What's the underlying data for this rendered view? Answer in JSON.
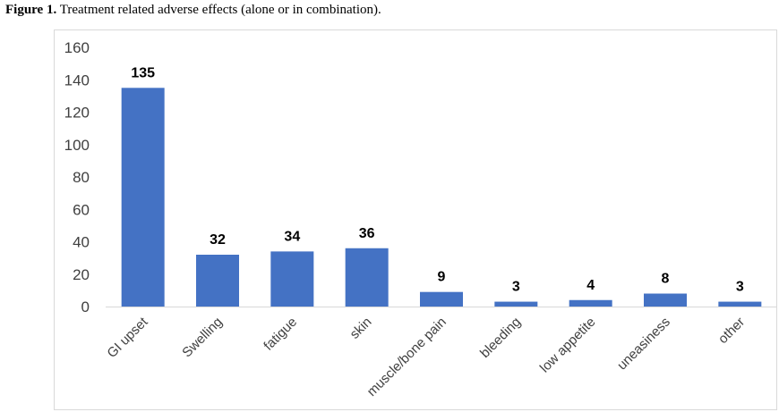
{
  "figure": {
    "label": "Figure 1.",
    "caption": "Treatment related adverse effects (alone or in combination)."
  },
  "chart_data": {
    "type": "bar",
    "title": "",
    "xlabel": "",
    "ylabel": "",
    "categories": [
      "GI upset",
      "Swelling",
      "fatigue",
      "skin",
      "muscle/bone pain",
      "bleeding",
      "low appetite",
      "uneasiness",
      "other"
    ],
    "values": [
      135,
      32,
      34,
      36,
      9,
      3,
      4,
      8,
      3
    ],
    "ylim": [
      0,
      160
    ],
    "yticks": [
      0,
      20,
      40,
      60,
      80,
      100,
      120,
      140,
      160
    ],
    "grid": false,
    "legend": "none",
    "bar_color": "#4472c4"
  }
}
